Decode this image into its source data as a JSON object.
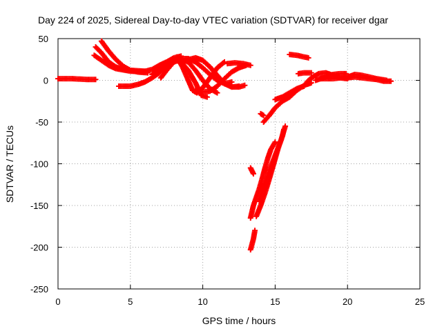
{
  "chart_data": {
    "type": "scatter",
    "title": "Day 224 of 2025, Sidereal Day-to-day VTEC variation (SDTVAR) for receiver dgar",
    "xlabel": "GPS time / hours",
    "ylabel": "SDTVAR / TECUs",
    "xlim": [
      0,
      25
    ],
    "ylim": [
      -250,
      50
    ],
    "xticks": [
      0,
      5,
      10,
      15,
      20,
      25
    ],
    "yticks": [
      50,
      0,
      -50,
      -100,
      -150,
      -200,
      -250
    ],
    "grid": true,
    "marker": "plus",
    "color": "#ff0000",
    "tracks": [
      {
        "points": [
          [
            0.0,
            2
          ],
          [
            1.0,
            2
          ],
          [
            2.0,
            1
          ],
          [
            2.6,
            1
          ]
        ]
      },
      {
        "points": [
          [
            2.6,
            40
          ],
          [
            3.0,
            33
          ],
          [
            3.5,
            22
          ],
          [
            4.0,
            16
          ],
          [
            4.5,
            13
          ],
          [
            5.0,
            12
          ],
          [
            6.0,
            11
          ]
        ]
      },
      {
        "points": [
          [
            2.5,
            30
          ],
          [
            3.0,
            24
          ],
          [
            3.5,
            18
          ],
          [
            4.0,
            14
          ],
          [
            5.0,
            11
          ],
          [
            6.0,
            10
          ]
        ]
      },
      {
        "points": [
          [
            3.0,
            47
          ],
          [
            3.5,
            35
          ],
          [
            4.0,
            25
          ],
          [
            4.5,
            17
          ],
          [
            5.0,
            12
          ],
          [
            5.5,
            10
          ],
          [
            6.2,
            9
          ]
        ]
      },
      {
        "points": [
          [
            4.2,
            -7
          ],
          [
            5.0,
            -7
          ],
          [
            5.5,
            -5
          ],
          [
            6.0,
            -2
          ],
          [
            6.5,
            3
          ],
          [
            7.0,
            9
          ],
          [
            7.5,
            18
          ],
          [
            8.0,
            24
          ],
          [
            8.5,
            26
          ]
        ]
      },
      {
        "points": [
          [
            5.8,
            10
          ],
          [
            6.5,
            13
          ],
          [
            7.0,
            18
          ],
          [
            7.5,
            22
          ],
          [
            8.0,
            27
          ],
          [
            8.5,
            29
          ]
        ]
      },
      {
        "points": [
          [
            7.1,
            3
          ],
          [
            7.5,
            12
          ],
          [
            8.0,
            22
          ],
          [
            8.5,
            25
          ],
          [
            9.0,
            22
          ],
          [
            9.5,
            12
          ],
          [
            10.0,
            0
          ],
          [
            10.5,
            -10
          ],
          [
            11.0,
            -15
          ]
        ]
      },
      {
        "points": [
          [
            7.5,
            20
          ],
          [
            8.0,
            25
          ],
          [
            8.5,
            22
          ],
          [
            9.0,
            12
          ],
          [
            9.5,
            -3
          ],
          [
            9.9,
            -18
          ],
          [
            10.3,
            -20
          ]
        ]
      },
      {
        "points": [
          [
            8.2,
            28
          ],
          [
            8.6,
            16
          ],
          [
            9.0,
            0
          ],
          [
            9.3,
            -12
          ],
          [
            9.6,
            -15
          ],
          [
            10.0,
            -9
          ],
          [
            10.5,
            3
          ],
          [
            11.0,
            15
          ],
          [
            11.5,
            22
          ]
        ]
      },
      {
        "points": [
          [
            6.5,
            7
          ],
          [
            7.0,
            12
          ],
          [
            7.5,
            18
          ],
          [
            8.0,
            22
          ],
          [
            8.5,
            26
          ],
          [
            9.0,
            26
          ],
          [
            9.5,
            22
          ],
          [
            10.0,
            15
          ],
          [
            10.5,
            7
          ],
          [
            11.0,
            0
          ],
          [
            11.5,
            -4
          ],
          [
            12.0,
            -2
          ]
        ]
      },
      {
        "points": [
          [
            8.8,
            24
          ],
          [
            9.5,
            27
          ],
          [
            10.0,
            24
          ],
          [
            10.5,
            16
          ],
          [
            11.0,
            6
          ],
          [
            11.5,
            -4
          ],
          [
            12.0,
            -8
          ],
          [
            12.5,
            -7
          ]
        ]
      },
      {
        "points": [
          [
            9.5,
            -12
          ],
          [
            10.0,
            -14
          ],
          [
            10.5,
            -13
          ],
          [
            11.0,
            -7
          ],
          [
            11.5,
            2
          ],
          [
            12.0,
            10
          ],
          [
            12.5,
            15
          ],
          [
            13.0,
            18
          ]
        ]
      },
      {
        "points": [
          [
            11.7,
            20
          ],
          [
            12.2,
            21
          ],
          [
            12.8,
            20
          ],
          [
            13.3,
            18
          ]
        ]
      },
      {
        "points": [
          [
            12.0,
            -8
          ],
          [
            12.5,
            -8
          ],
          [
            12.9,
            -6
          ]
        ]
      },
      {
        "points": [
          [
            13.3,
            -105
          ],
          [
            13.5,
            -112
          ]
        ]
      },
      {
        "points": [
          [
            13.3,
            -165
          ],
          [
            13.5,
            -150
          ],
          [
            13.7,
            -140
          ],
          [
            13.9,
            -130
          ],
          [
            14.1,
            -118
          ],
          [
            14.3,
            -105
          ],
          [
            14.5,
            -93
          ],
          [
            14.7,
            -83
          ],
          [
            15.0,
            -74
          ]
        ]
      },
      {
        "points": [
          [
            13.3,
            -203
          ],
          [
            13.5,
            -190
          ],
          [
            13.6,
            -180
          ]
        ]
      },
      {
        "points": [
          [
            13.7,
            -163
          ],
          [
            14.0,
            -150
          ],
          [
            14.3,
            -135
          ],
          [
            14.6,
            -118
          ],
          [
            14.9,
            -100
          ],
          [
            15.2,
            -82
          ],
          [
            15.5,
            -67
          ],
          [
            15.6,
            -59
          ]
        ]
      },
      {
        "points": [
          [
            13.9,
            -145
          ],
          [
            14.2,
            -128
          ],
          [
            14.6,
            -108
          ],
          [
            15.0,
            -90
          ],
          [
            15.4,
            -72
          ],
          [
            15.7,
            -55
          ]
        ]
      },
      {
        "points": [
          [
            14.0,
            -40
          ],
          [
            14.2,
            -42
          ]
        ]
      },
      {
        "points": [
          [
            14.2,
            -50
          ],
          [
            14.6,
            -42
          ],
          [
            15.0,
            -33
          ],
          [
            15.5,
            -25
          ],
          [
            16.0,
            -20
          ],
          [
            16.5,
            -12
          ],
          [
            17.0,
            -6
          ],
          [
            17.5,
            -3
          ]
        ]
      },
      {
        "points": [
          [
            15.0,
            -23
          ],
          [
            15.5,
            -20
          ],
          [
            16.0,
            -15
          ],
          [
            16.5,
            -10
          ],
          [
            17.0,
            -7
          ]
        ]
      },
      {
        "points": [
          [
            16.0,
            31
          ],
          [
            16.5,
            30
          ],
          [
            17.0,
            28
          ],
          [
            17.3,
            27
          ]
        ]
      },
      {
        "points": [
          [
            16.6,
            8
          ],
          [
            17.0,
            9
          ],
          [
            17.5,
            9
          ]
        ]
      },
      {
        "points": [
          [
            17.8,
            0
          ],
          [
            18.5,
            4
          ],
          [
            19.0,
            7
          ],
          [
            19.5,
            8
          ],
          [
            19.9,
            8
          ]
        ]
      },
      {
        "points": [
          [
            17.2,
            -2
          ],
          [
            17.5,
            3
          ],
          [
            18.0,
            8
          ],
          [
            18.5,
            9
          ],
          [
            19.0,
            6
          ],
          [
            19.5,
            3
          ],
          [
            20.0,
            2
          ]
        ]
      },
      {
        "points": [
          [
            18.2,
            2
          ],
          [
            19.0,
            2
          ],
          [
            19.5,
            3
          ],
          [
            20.0,
            4
          ],
          [
            20.5,
            7
          ],
          [
            21.0,
            6
          ],
          [
            21.5,
            4
          ],
          [
            22.0,
            2
          ],
          [
            22.7,
            0
          ]
        ]
      },
      {
        "points": [
          [
            20.0,
            3
          ],
          [
            20.5,
            4
          ],
          [
            21.0,
            3
          ],
          [
            21.5,
            2
          ],
          [
            22.0,
            1
          ],
          [
            22.5,
            -1
          ],
          [
            23.0,
            -1
          ]
        ]
      }
    ]
  }
}
